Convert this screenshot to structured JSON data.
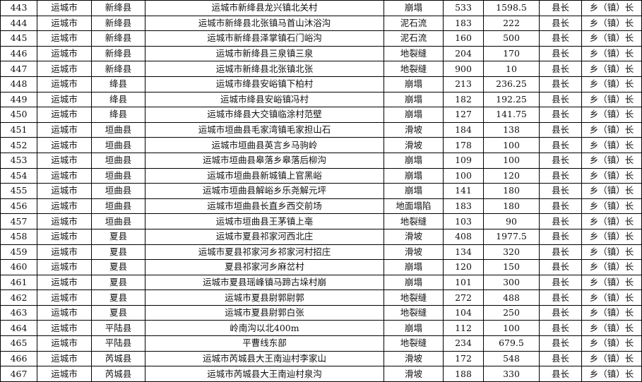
{
  "rows": [
    [
      "443",
      "运城市",
      "新绛县",
      "运城市新绛县龙兴镇北关村",
      "崩塌",
      "533",
      "1598.5",
      "县长",
      "乡（镇）长"
    ],
    [
      "444",
      "运城市",
      "新绛县",
      "运城市新绛县北张镇马首山沐浴沟",
      "泥石流",
      "183",
      "222",
      "县长",
      "乡（镇）长"
    ],
    [
      "445",
      "运城市",
      "新绛县",
      "运城市新绛县泽掌镇石门峪沟",
      "泥石流",
      "160",
      "500",
      "县长",
      "乡（镇）长"
    ],
    [
      "446",
      "运城市",
      "新绛县",
      "运城市新绛县三泉镇三泉",
      "地裂缝",
      "204",
      "170",
      "县长",
      "乡（镇）长"
    ],
    [
      "447",
      "运城市",
      "新绛县",
      "运城市新绛县北张镇北张",
      "地裂缝",
      "900",
      "10",
      "县长",
      "乡（镇）长"
    ],
    [
      "448",
      "运城市",
      "绛县",
      "运城市绛县安峪镇下柏村",
      "崩塌",
      "213",
      "236.25",
      "县长",
      "乡（镇）长"
    ],
    [
      "449",
      "运城市",
      "绛县",
      "运城市绛县安峪镇冯村",
      "崩塌",
      "182",
      "192.25",
      "县长",
      "乡（镇）长"
    ],
    [
      "450",
      "运城市",
      "绛县",
      "运城市绛县大交镇临涂村范壁",
      "崩塌",
      "127",
      "141.75",
      "县长",
      "乡（镇）长"
    ],
    [
      "451",
      "运城市",
      "垣曲县",
      "运城市垣曲县毛家湾镇毛家担山石",
      "滑坡",
      "184",
      "138",
      "县长",
      "乡（镇）长"
    ],
    [
      "452",
      "运城市",
      "垣曲县",
      "运城市垣曲县英言乡马驹岭",
      "滑坡",
      "178",
      "100",
      "县长",
      "乡（镇）长"
    ],
    [
      "453",
      "运城市",
      "垣曲县",
      "运城市垣曲县皋落乡皋落后柳沟",
      "崩塌",
      "109",
      "100",
      "县长",
      "乡（镇）长"
    ],
    [
      "454",
      "运城市",
      "垣曲县",
      "运城市垣曲县新城镇上官黑峪",
      "崩塌",
      "100",
      "120",
      "县长",
      "乡（镇）长"
    ],
    [
      "455",
      "运城市",
      "垣曲县",
      "运城市垣曲县解峪乡乐尧解元坪",
      "崩塌",
      "141",
      "180",
      "县长",
      "乡（镇）长"
    ],
    [
      "456",
      "运城市",
      "垣曲县",
      "运城市垣曲县长直乡西交前场",
      "地面塌陷",
      "183",
      "180",
      "县长",
      "乡（镇）长"
    ],
    [
      "457",
      "运城市",
      "垣曲县",
      "运城市垣曲县王茅镇上亳",
      "地裂缝",
      "103",
      "90",
      "县长",
      "乡（镇）长"
    ],
    [
      "458",
      "运城市",
      "夏县",
      "运城市夏县祁家河西北庄",
      "滑坡",
      "408",
      "1977.5",
      "县长",
      "乡（镇）长"
    ],
    [
      "459",
      "运城市",
      "夏县",
      "运城市夏县祁家河乡祁家河村招庄",
      "滑坡",
      "134",
      "320",
      "县长",
      "乡（镇）长"
    ],
    [
      "460",
      "运城市",
      "夏县",
      "夏县祁家河乡麻岔村",
      "崩塌",
      "120",
      "150",
      "县长",
      "乡（镇）长"
    ],
    [
      "461",
      "运城市",
      "夏县",
      "运城市夏县瑶峰镇马蹄古垛村崩",
      "崩塌",
      "101",
      "300",
      "县长",
      "乡（镇）长"
    ],
    [
      "462",
      "运城市",
      "夏县",
      "运城市夏县尉郭尉郭",
      "地裂缝",
      "272",
      "488",
      "县长",
      "乡（镇）长"
    ],
    [
      "463",
      "运城市",
      "夏县",
      "运城市夏县尉郭白张",
      "地裂缝",
      "104",
      "250",
      "县长",
      "乡（镇）长"
    ],
    [
      "464",
      "运城市",
      "平陆县",
      "岭南沟以北400m",
      "崩塌",
      "112",
      "100",
      "县长",
      "乡（镇）长"
    ],
    [
      "465",
      "运城市",
      "平陆县",
      "平曹线东部",
      "地裂缝",
      "234",
      "679.5",
      "县长",
      "乡（镇）长"
    ],
    [
      "466",
      "运城市",
      "芮城县",
      "运城市芮城县大王南辿村李家山",
      "滑坡",
      "172",
      "548",
      "县长",
      "乡（镇）长"
    ],
    [
      "467",
      "运城市",
      "芮城县",
      "运城市芮城县大王南辿村泉沟",
      "滑坡",
      "188",
      "330",
      "县长",
      "乡（镇）长"
    ]
  ]
}
